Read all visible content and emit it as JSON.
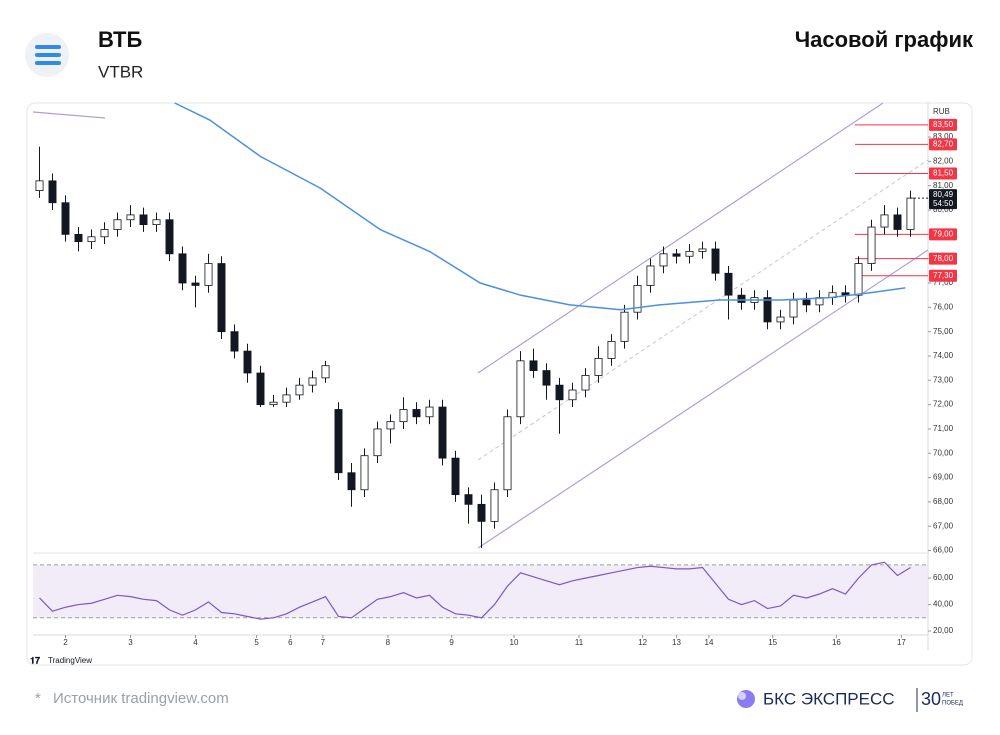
{
  "header": {
    "title": "ВТБ",
    "ticker": "VTBR",
    "chart_kind": "Часовой график"
  },
  "chart_data": [
    {
      "type": "candlestick",
      "currency": "RUB",
      "xlim": [
        -0.5,
        67.5
      ],
      "xticks": [
        {
          "value": 2,
          "label": "2"
        },
        {
          "value": 7,
          "label": "3"
        },
        {
          "value": 12,
          "label": "4"
        },
        {
          "value": 16.7,
          "label": "5"
        },
        {
          "value": 19.3,
          "label": "6"
        },
        {
          "value": 21.8,
          "label": "7"
        },
        {
          "value": 26.8,
          "label": "8"
        },
        {
          "value": 31.7,
          "label": "9"
        },
        {
          "value": 36.5,
          "label": "10"
        },
        {
          "value": 41.5,
          "label": "11"
        },
        {
          "value": 46.4,
          "label": "12"
        },
        {
          "value": 49,
          "label": "13"
        },
        {
          "value": 51.5,
          "label": "14"
        },
        {
          "value": 56.4,
          "label": "15"
        },
        {
          "value": 61.3,
          "label": "16"
        },
        {
          "value": 66.3,
          "label": "17"
        }
      ],
      "ylim": [
        65.9,
        84.4
      ],
      "yticks": [
        {
          "value": 66,
          "label": "66,00"
        },
        {
          "value": 67,
          "label": "67,00"
        },
        {
          "value": 68,
          "label": "68,00"
        },
        {
          "value": 69,
          "label": "69,00"
        },
        {
          "value": 70,
          "label": "70,00"
        },
        {
          "value": 71,
          "label": "71,00"
        },
        {
          "value": 72,
          "label": "72,00"
        },
        {
          "value": 73,
          "label": "73,00"
        },
        {
          "value": 74,
          "label": "74,00"
        },
        {
          "value": 75,
          "label": "75,00"
        },
        {
          "value": 76,
          "label": "76,00"
        },
        {
          "value": 77,
          "label": "77,00"
        },
        {
          "value": 78,
          "label": "78,00"
        },
        {
          "value": 79,
          "label": "79,00"
        },
        {
          "value": 80,
          "label": "80,00"
        },
        {
          "value": 81,
          "label": "81,00"
        },
        {
          "value": 82,
          "label": "82,00"
        },
        {
          "value": 83,
          "label": "83,00"
        }
      ],
      "open": [
        80.8,
        81.2,
        80.3,
        79.0,
        78.7,
        78.9,
        79.2,
        79.6,
        79.8,
        79.4,
        79.6,
        78.2,
        77.0,
        76.9,
        77.8,
        75.0,
        74.2,
        73.3,
        72.0,
        72.1,
        72.4,
        72.8,
        73.1,
        71.8,
        69.2,
        68.5,
        69.9,
        71.0,
        71.3,
        71.8,
        71.5,
        71.9,
        69.8,
        68.3,
        67.9,
        67.2,
        68.5,
        71.5,
        73.8,
        73.4,
        72.8,
        72.2,
        72.6,
        73.2,
        73.9,
        74.6,
        75.8,
        76.9,
        77.7,
        78.2,
        78.1,
        78.3,
        78.4,
        77.4,
        76.5,
        76.2,
        76.4,
        75.4,
        75.6,
        76.3,
        76.1,
        76.4,
        76.6,
        76.5,
        77.8,
        79.3,
        79.8,
        79.2
      ],
      "high": [
        82.6,
        81.5,
        80.6,
        79.3,
        79.2,
        79.5,
        79.9,
        80.2,
        80.1,
        79.9,
        79.9,
        78.5,
        77.3,
        78.2,
        78.1,
        75.3,
        74.5,
        73.6,
        72.4,
        72.7,
        73.1,
        73.4,
        73.8,
        72.1,
        69.6,
        70.2,
        71.3,
        71.6,
        72.3,
        72.1,
        72.2,
        72.2,
        70.1,
        68.6,
        68.3,
        68.8,
        71.8,
        74.2,
        74.3,
        73.7,
        73.1,
        72.9,
        73.5,
        74.4,
        74.9,
        76.1,
        77.3,
        78.0,
        78.5,
        78.4,
        78.6,
        78.7,
        78.7,
        77.7,
        76.8,
        76.7,
        76.7,
        75.9,
        76.6,
        76.6,
        76.7,
        76.9,
        76.9,
        78.1,
        79.6,
        80.2,
        80.1,
        80.8
      ],
      "low": [
        80.5,
        80.0,
        78.7,
        78.3,
        78.4,
        78.6,
        78.9,
        79.3,
        79.1,
        79.1,
        77.9,
        76.7,
        76.0,
        76.6,
        74.7,
        73.9,
        72.9,
        71.9,
        71.9,
        71.9,
        72.2,
        72.5,
        72.9,
        68.9,
        67.8,
        68.2,
        69.6,
        70.4,
        71.0,
        71.2,
        71.2,
        69.5,
        68.0,
        67.1,
        66.1,
        66.9,
        68.2,
        71.2,
        73.1,
        72.2,
        70.8,
        71.9,
        72.3,
        72.9,
        73.6,
        74.3,
        75.5,
        76.6,
        77.4,
        77.8,
        77.8,
        78.0,
        77.1,
        75.5,
        75.9,
        75.9,
        75.1,
        75.1,
        75.3,
        75.8,
        75.8,
        76.1,
        76.2,
        76.2,
        77.5,
        79.0,
        78.9,
        78.9
      ],
      "close": [
        81.2,
        80.3,
        79.0,
        78.7,
        78.9,
        79.2,
        79.6,
        79.8,
        79.4,
        79.6,
        78.2,
        77.0,
        76.9,
        77.8,
        75.0,
        74.2,
        73.3,
        72.0,
        72.1,
        72.4,
        72.8,
        73.1,
        73.6,
        69.2,
        68.5,
        69.9,
        71.0,
        71.3,
        71.8,
        71.5,
        71.9,
        69.8,
        68.3,
        67.9,
        67.2,
        68.5,
        71.5,
        73.8,
        73.4,
        72.8,
        72.2,
        72.6,
        73.2,
        73.9,
        74.6,
        75.8,
        76.9,
        77.7,
        78.2,
        78.1,
        78.3,
        78.4,
        77.4,
        76.5,
        76.2,
        76.4,
        75.4,
        75.6,
        76.3,
        76.1,
        76.4,
        76.6,
        76.5,
        77.8,
        79.3,
        79.8,
        79.2,
        80.49
      ],
      "up_color": "#ffffff",
      "down_color": "#131722",
      "ma": {
        "color": "#4a90e2",
        "x": [
          10.4,
          13.1,
          17,
          21.6,
          26.2,
          30,
          33.9,
          37,
          40.8,
          44.7,
          47.7,
          52.3,
          57,
          60.8,
          63.9,
          66.6
        ],
        "values": [
          84.4,
          83.7,
          82.2,
          80.9,
          79.2,
          78.3,
          77.0,
          76.5,
          76.1,
          75.9,
          76.1,
          76.3,
          76.3,
          76.4,
          76.6,
          76.8
        ]
      },
      "levels_color": "#f23645",
      "levels": [
        {
          "value": 83.5,
          "label": "83,50"
        },
        {
          "value": 82.7,
          "label": "82,70"
        },
        {
          "value": 81.5,
          "label": "81,50"
        },
        {
          "value": 79,
          "label": "79,00"
        },
        {
          "value": 78,
          "label": "78,00"
        },
        {
          "value": 77.3,
          "label": "77,30"
        }
      ],
      "last_price": {
        "value": 80.49,
        "label": "80,49"
      },
      "countdown": "54:50"
    },
    {
      "type": "line",
      "color": "#7e57c2",
      "ylim": [
        17,
        79
      ],
      "yticks": [
        {
          "value": 20,
          "label": "20,00"
        },
        {
          "value": 40,
          "label": "40,00"
        },
        {
          "value": 60,
          "label": "60,00"
        }
      ],
      "band": [
        30,
        70
      ],
      "values": [
        45,
        35,
        38,
        40,
        41,
        44,
        47,
        46,
        44,
        43,
        36,
        32,
        36,
        42,
        34,
        33,
        31,
        29,
        30,
        33,
        38,
        42,
        46,
        31,
        30,
        37,
        44,
        46,
        49,
        45,
        47,
        38,
        33,
        32,
        30,
        40,
        54,
        64,
        61,
        58,
        55,
        58,
        60,
        62,
        64,
        66,
        68,
        69,
        68,
        67,
        67,
        68,
        56,
        44,
        40,
        43,
        37,
        39,
        47,
        45,
        48,
        52,
        48,
        60,
        70,
        72,
        62,
        68
      ]
    }
  ],
  "watermark": "TradingView",
  "footer": {
    "asterisk": "*",
    "source": "Источник tradingview.com",
    "brand": "БКС ЭКСПРЕСС",
    "anniversary": "30",
    "anniversary_top": "ЛЕТ",
    "anniversary_bottom": "ПОБЕД"
  }
}
